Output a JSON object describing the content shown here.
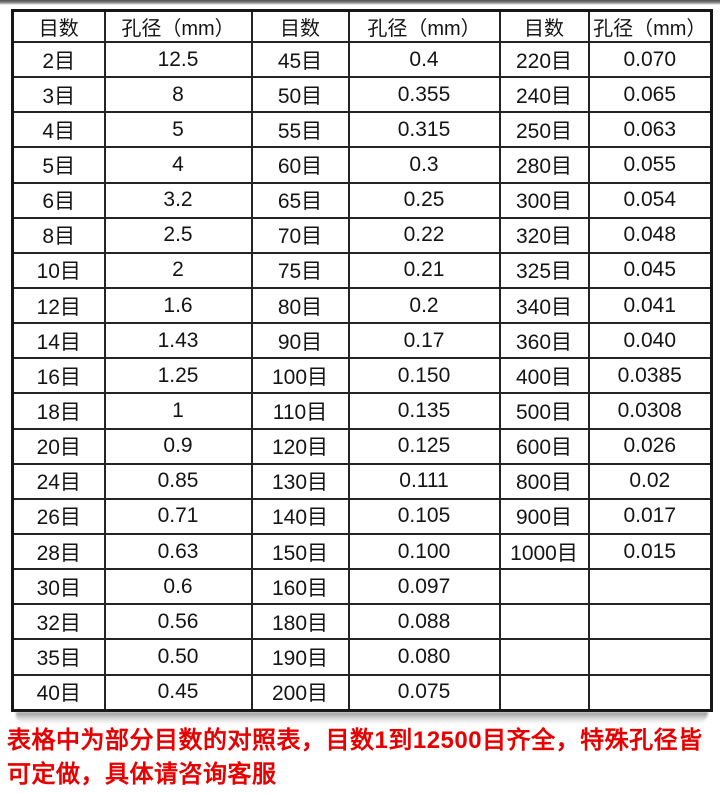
{
  "table": {
    "headers": [
      "目数",
      "孔径（mm）",
      "目数",
      "孔径（mm）",
      "目数",
      "孔径（mm）"
    ],
    "rows": [
      [
        "2目",
        "12.5",
        "45目",
        "0.4",
        "220目",
        "0.070"
      ],
      [
        "3目",
        "8",
        "50目",
        "0.355",
        "240目",
        "0.065"
      ],
      [
        "4目",
        "5",
        "55目",
        "0.315",
        "250目",
        "0.063"
      ],
      [
        "5目",
        "4",
        "60目",
        "0.3",
        "280目",
        "0.055"
      ],
      [
        "6目",
        "3.2",
        "65目",
        "0.25",
        "300目",
        "0.054"
      ],
      [
        "8目",
        "2.5",
        "70目",
        "0.22",
        "320目",
        "0.048"
      ],
      [
        "10目",
        "2",
        "75目",
        "0.21",
        "325目",
        "0.045"
      ],
      [
        "12目",
        "1.6",
        "80目",
        "0.2",
        "340目",
        "0.041"
      ],
      [
        "14目",
        "1.43",
        "90目",
        "0.17",
        "360目",
        "0.040"
      ],
      [
        "16目",
        "1.25",
        "100目",
        "0.150",
        "400目",
        "0.0385"
      ],
      [
        "18目",
        "1",
        "110目",
        "0.135",
        "500目",
        "0.0308"
      ],
      [
        "20目",
        "0.9",
        "120目",
        "0.125",
        "600目",
        "0.026"
      ],
      [
        "24目",
        "0.85",
        "130目",
        "0.111",
        "800目",
        "0.02"
      ],
      [
        "26目",
        "0.71",
        "140目",
        "0.105",
        "900目",
        "0.017"
      ],
      [
        "28目",
        "0.63",
        "150目",
        "0.100",
        "1000目",
        "0.015"
      ],
      [
        "30目",
        "0.6",
        "160目",
        "0.097",
        "",
        ""
      ],
      [
        "32目",
        "0.56",
        "180目",
        "0.088",
        "",
        ""
      ],
      [
        "35目",
        "0.50",
        "190目",
        "0.080",
        "",
        ""
      ],
      [
        "40目",
        "0.45",
        "200目",
        "0.075",
        "",
        ""
      ]
    ]
  },
  "footnote": {
    "line1": "表格中为部分目数的对照表，目数1到12500目齐全，特殊孔径皆",
    "line2": "可定做，具体请咨询客服",
    "color": "#e80000"
  },
  "colors": {
    "grid_line": "#242424",
    "text": "#141414",
    "background": "#ffffff"
  }
}
